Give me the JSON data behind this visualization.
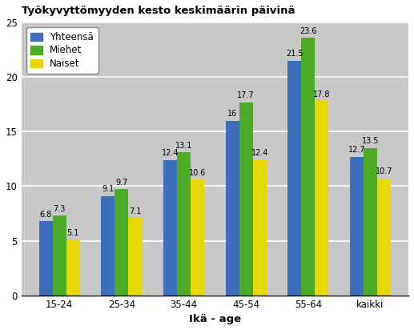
{
  "title": "Työkyvyttömyyden kesto keskimäärin päivinä",
  "xlabel": "Ikä - age",
  "categories": [
    "15-24",
    "25-34",
    "35-44",
    "45-54",
    "55-64",
    "kaikki"
  ],
  "series": {
    "Yhteensä": [
      6.8,
      9.1,
      12.4,
      16.0,
      21.5,
      12.7
    ],
    "Miehet": [
      7.3,
      9.7,
      13.1,
      17.7,
      23.6,
      13.5
    ],
    "Naiset": [
      5.1,
      7.1,
      10.6,
      12.4,
      17.8,
      10.7
    ]
  },
  "colors": {
    "Yhteensä": "#3c6fbe",
    "Miehet": "#4dac26",
    "Naiset": "#e8d800"
  },
  "ylim": [
    0,
    25
  ],
  "yticks": [
    0,
    5,
    10,
    15,
    20,
    25
  ],
  "figure_bg_color": "#ffffff",
  "plot_bg_color": "#c8c8c8",
  "bar_width": 0.22,
  "title_fontsize": 9.5,
  "label_fontsize": 7.0,
  "tick_fontsize": 8.5,
  "legend_fontsize": 8.5,
  "xlabel_fontsize": 9.5
}
